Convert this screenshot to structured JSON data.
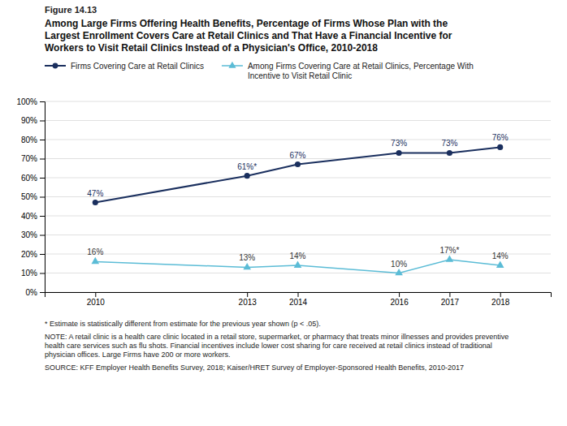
{
  "chart_data": {
    "type": "line",
    "title": "Among Large Firms Offering Health Benefits, Percentage of Firms Whose Plan with the\nLargest Enrollment Covers Care at Retail Clinics and That Have a Financial Incentive for\nWorkers to Visit Retail Clinics Instead of a Physician's Office, 2010-2018",
    "annotations": [
      "Figure 14.13",
      "* Estimate is statistically different from estimate for the previous year shown (p < .05).",
      "NOTE: A retail clinic is a health care clinic located in a retail store, supermarket, or pharmacy that treats minor illnesses and provides preventive\nhealth care services such as flu shots. Financial incentives include lower cost sharing for care received at retail clinics instead of traditional\nphysician offices. Large Firms have 200 or more workers.",
      "SOURCE: KFF Employer Health Benefits Survey, 2018; Kaiser/HRET Survey of Employer-Sponsored Health Benefits, 2010-2017"
    ],
    "x": [
      2010,
      2013,
      2014,
      2016,
      2017,
      2018
    ],
    "xlim": [
      2009,
      2019
    ],
    "xticks": [
      2010,
      2013,
      2014,
      2016,
      2017,
      2018
    ],
    "ylim": [
      0,
      100
    ],
    "yticks": [
      {
        "value": 0,
        "label": "0%"
      },
      {
        "value": 10,
        "label": "10%"
      },
      {
        "value": 20,
        "label": "20%"
      },
      {
        "value": 30,
        "label": "30%"
      },
      {
        "value": 40,
        "label": "40%"
      },
      {
        "value": 50,
        "label": "50%"
      },
      {
        "value": 60,
        "label": "60%"
      },
      {
        "value": 70,
        "label": "70%"
      },
      {
        "value": 80,
        "label": "80%"
      },
      {
        "value": 90,
        "label": "90%"
      },
      {
        "value": 100,
        "label": "100%"
      }
    ],
    "grid": true,
    "legend": "top",
    "data_labels": true,
    "series": [
      {
        "name": "Firms Covering Care at Retail Clinics",
        "color": "#1a2f5e",
        "marker": "circle",
        "line_style": "solid",
        "values": [
          47,
          61,
          67,
          73,
          73,
          76
        ],
        "value_labels": [
          "47%",
          "61%*",
          "67%",
          "73%",
          "73%",
          "76%"
        ]
      },
      {
        "name": "Among Firms Covering Care at Retail Clinics, Percentage With\nIncentive to Visit Retail Clinic",
        "color": "#5bbcd6",
        "marker": "triangle",
        "line_style": "solid",
        "values": [
          16,
          13,
          14,
          10,
          17,
          14
        ],
        "value_labels": [
          "16%",
          "13%",
          "14%",
          "10%",
          "17%*",
          "14%"
        ]
      }
    ]
  }
}
